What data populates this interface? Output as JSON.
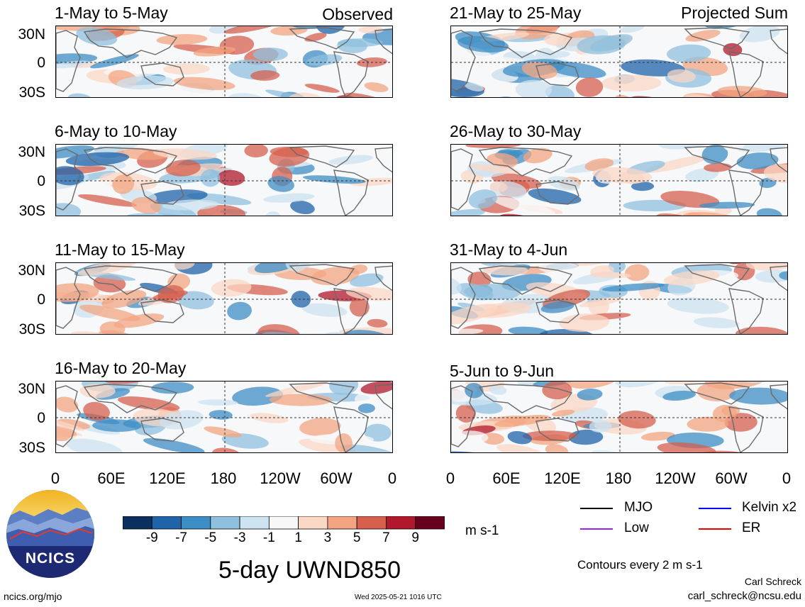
{
  "observed_label": "Observed",
  "projected_label": "Projected Sum",
  "left_panels": [
    {
      "title": "1-May to 5-May"
    },
    {
      "title": "6-May to 10-May"
    },
    {
      "title": "11-May to 15-May"
    },
    {
      "title": "16-May to 20-May"
    }
  ],
  "right_panels": [
    {
      "title": "21-May to 25-May"
    },
    {
      "title": "26-May to 30-May"
    },
    {
      "title": "31-May to 4-Jun"
    },
    {
      "title": "5-Jun to 9-Jun"
    }
  ],
  "lat_labels": [
    "30N",
    "0",
    "30S"
  ],
  "lon_labels": [
    "0",
    "60E",
    "120E",
    "180",
    "120W",
    "60W",
    "0"
  ],
  "colorbar": {
    "labels": [
      "-9",
      "-7",
      "-5",
      "-3",
      "-1",
      "1",
      "3",
      "5",
      "7",
      "9"
    ],
    "colors": [
      "#0b2f5e",
      "#1f63a8",
      "#3d8ec4",
      "#8fc0dd",
      "#cde3f0",
      "#f8f8f8",
      "#fbd7c5",
      "#f3a582",
      "#d6604d",
      "#b2182b",
      "#67001f"
    ],
    "units": "m s-1"
  },
  "legend": [
    {
      "label": "MJO",
      "color": "#000000"
    },
    {
      "label": "Kelvin x2",
      "color": "#0000ee"
    },
    {
      "label": "Low",
      "color": "#a020f0"
    },
    {
      "label": "ER",
      "color": "#ee0000"
    }
  ],
  "main_title": "5-day UWND850",
  "contours_note": "Contours every 2 m s-1",
  "author": "Carl Schreck",
  "email": "carl_schreck@ncsu.edu",
  "site": "ncics.org/mjo",
  "timestamp": "Wed 2025-05-21 1016 UTC",
  "logo_text": "NCICS"
}
